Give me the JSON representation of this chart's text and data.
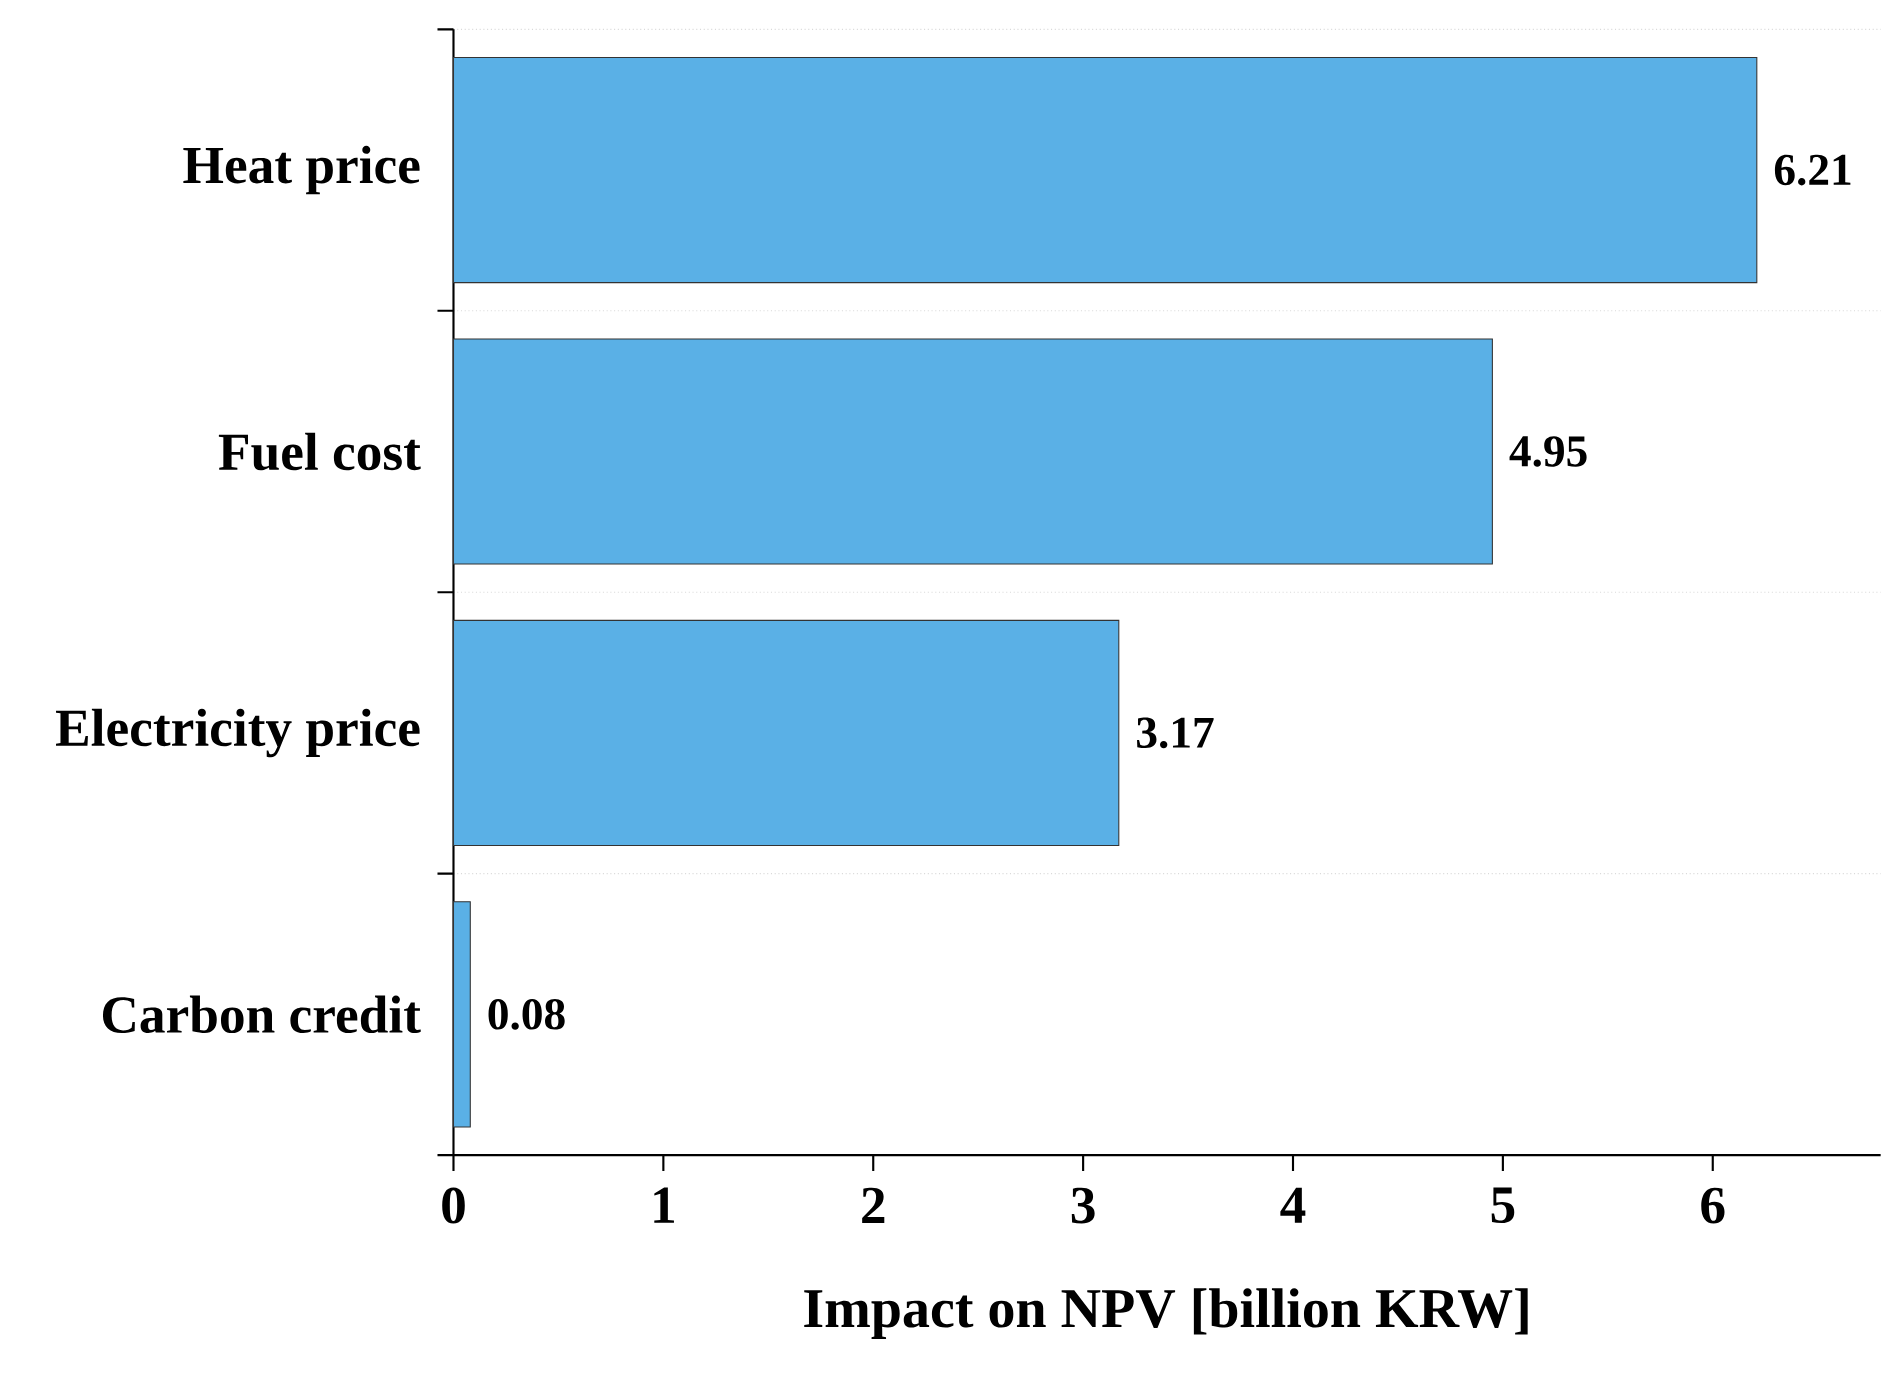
{
  "chart_data": {
    "type": "bar",
    "orientation": "horizontal",
    "xlabel": "Impact on NPV [billion KRW]",
    "categories": [
      "Heat price",
      "Fuel cost",
      "Electricity price",
      "Carbon credit"
    ],
    "values": [
      6.21,
      4.95,
      3.17,
      0.08
    ],
    "color": "#5ab0e6",
    "xlim": [
      0,
      6.8
    ],
    "xticks": [
      0,
      1,
      2,
      3,
      4,
      5,
      6
    ],
    "data_labels": true,
    "grid": "y"
  }
}
